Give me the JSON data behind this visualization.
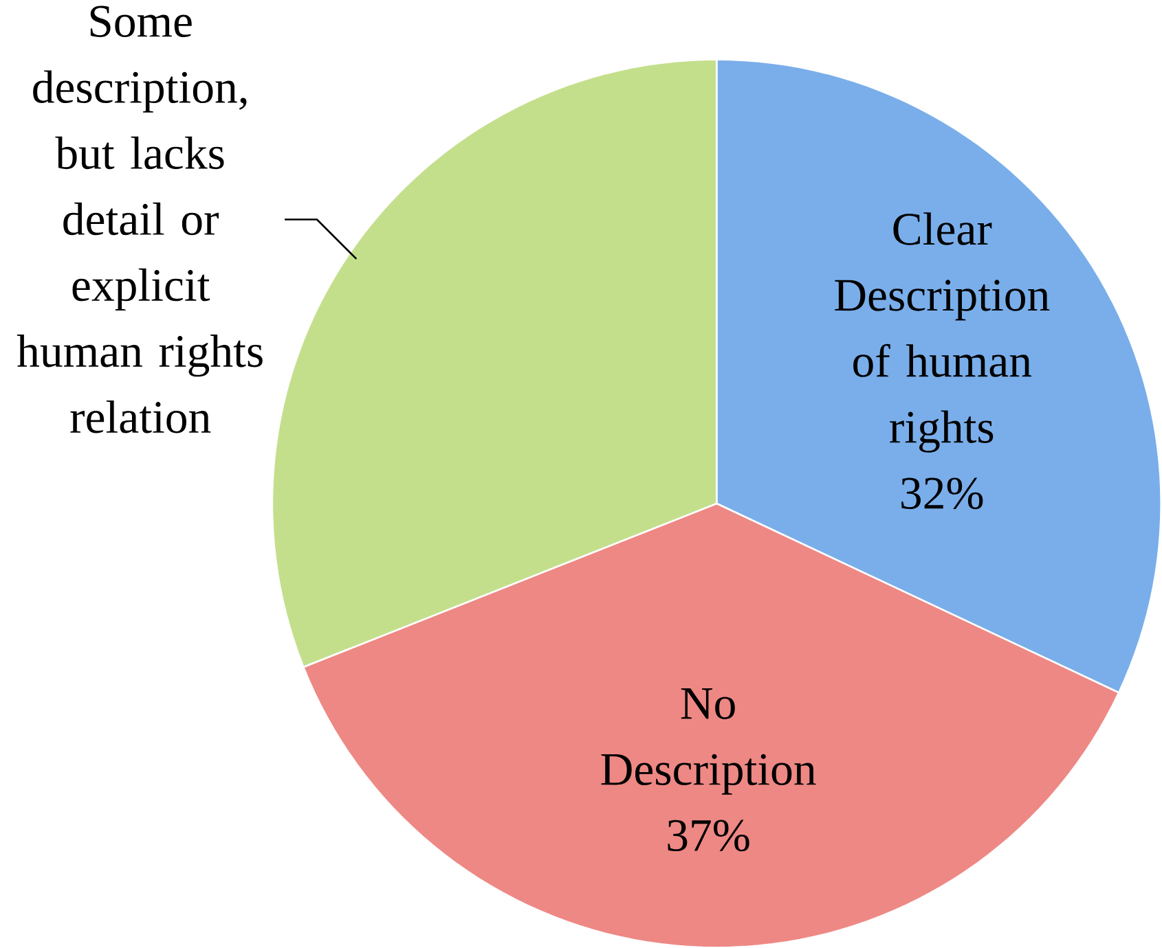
{
  "chart_data": {
    "type": "pie",
    "categories": [
      "Clear Description of human rights",
      "No Description",
      "Some description, but lacks detail or explicit human rights relation"
    ],
    "values": [
      32,
      37,
      31
    ],
    "value_labels": [
      "32%",
      "37%",
      null
    ],
    "colors": [
      "#7aaeea",
      "#ee8884",
      "#c4df8c"
    ]
  }
}
